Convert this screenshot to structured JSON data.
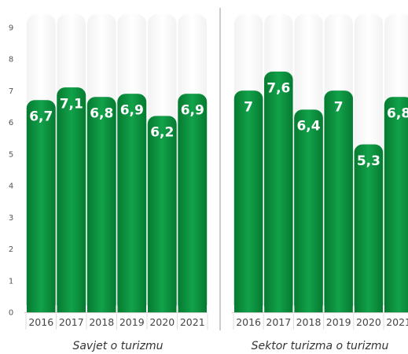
{
  "chart_data": [
    {
      "type": "bar",
      "title": "Savjet o turizmu",
      "categories": [
        "2016",
        "2017",
        "2018",
        "2019",
        "2020",
        "2021"
      ],
      "values": [
        6.7,
        7.1,
        6.8,
        6.9,
        6.2,
        6.9
      ],
      "value_labels": [
        "6,7",
        "7,1",
        "6,8",
        "6,9",
        "6,2",
        "6,9"
      ],
      "ylim": [
        0,
        9
      ],
      "yticks": [
        "0",
        "1",
        "2",
        "3",
        "4",
        "5",
        "6",
        "7",
        "8",
        "9"
      ],
      "bar_color": "#0a8f3c"
    },
    {
      "type": "bar",
      "title": "Sektor turizma o turizmu",
      "categories": [
        "2016",
        "2017",
        "2018",
        "2019",
        "2020",
        "2021"
      ],
      "values": [
        7.0,
        7.6,
        6.4,
        7.0,
        5.3,
        6.8
      ],
      "value_labels": [
        "7",
        "7,6",
        "6,4",
        "7",
        "5,3",
        "6,8"
      ],
      "ylim": [
        0,
        9
      ],
      "bar_color": "#0a8f3c"
    }
  ]
}
